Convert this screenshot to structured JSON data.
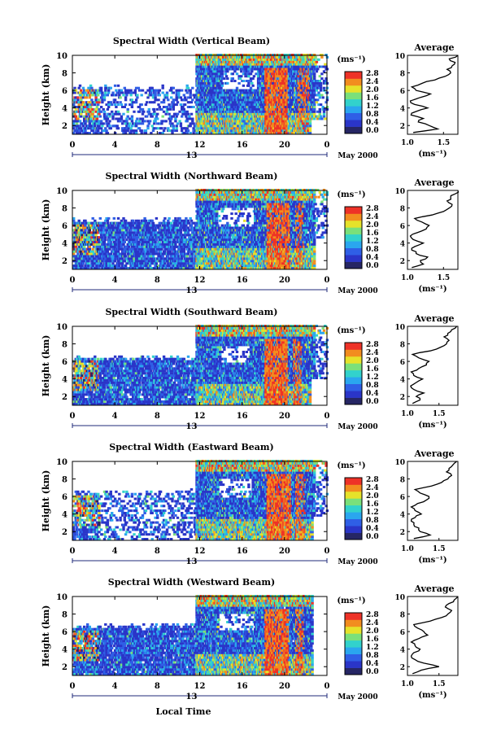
{
  "figure": {
    "xlabel": "Local Time",
    "date_label": "May 2000",
    "day_label": "13",
    "avg_title": "Average",
    "avg_xlabel": "(ms⁻¹)",
    "colorbar_unit": "(ms⁻¹)",
    "ylabel": "Height (km)"
  },
  "chart_data": [
    {
      "type": "heatmap",
      "title": "Spectral Width (Vertical Beam)",
      "xlabel": "Local Time",
      "ylabel": "Height (km)",
      "xticks": [
        "0",
        "4",
        "8",
        "12",
        "16",
        "20",
        "0"
      ],
      "yticks": [
        "2",
        "4",
        "6",
        "8",
        "10"
      ],
      "xlim": [
        0,
        24
      ],
      "ylim": [
        1,
        10
      ],
      "colorbar": {
        "label": "(ms⁻¹)",
        "ticks": [
          "0.0",
          "0.4",
          "0.8",
          "1.2",
          "1.6",
          "2.0",
          "2.4",
          "2.8"
        ],
        "range": [
          0,
          2.8
        ]
      },
      "colormap": [
        "#262664",
        "#2a35c8",
        "#2f5fe6",
        "#2aa6ef",
        "#32d2cc",
        "#7ae07a",
        "#e6e22a",
        "#f28d1f",
        "#ee3227"
      ],
      "average": {
        "xlim": [
          1.0,
          1.7
        ],
        "xticks": [
          "1.0",
          "1.5"
        ],
        "yticks": [
          "2",
          "4",
          "6",
          "8",
          "10"
        ],
        "heights": [
          1.2,
          1.6,
          2.0,
          2.4,
          2.8,
          3.2,
          3.6,
          4.0,
          4.4,
          4.8,
          5.2,
          5.6,
          6.0,
          6.4,
          6.8,
          7.2,
          7.6,
          8.0,
          8.4,
          8.8,
          9.2,
          9.6,
          10.0
        ],
        "values": [
          1.08,
          1.42,
          1.3,
          1.15,
          1.22,
          1.05,
          1.12,
          1.28,
          1.1,
          1.04,
          1.18,
          1.32,
          1.12,
          1.06,
          1.2,
          1.38,
          1.52,
          1.6,
          1.55,
          1.62,
          1.66,
          1.58,
          1.7
        ]
      },
      "features": {
        "low_start": 0.0,
        "low_end": 11.0,
        "low_top": 6.2,
        "sparse": true,
        "upper_start": 11.5,
        "convective": [
          [
            18.0,
            20.3,
            0.85
          ],
          [
            21.2,
            22.3,
            0.55
          ]
        ],
        "blank": [
          [
            22.4,
            24.0,
            1.0,
            2.5
          ]
        ],
        "clouds": [
          [
            14.0,
            17.3,
            6.0,
            8.2
          ]
        ],
        "dense_end": 22.8
      }
    },
    {
      "type": "heatmap",
      "title": "Spectral Width (Northward Beam)",
      "xlabel": "Local Time",
      "ylabel": "Height (km)",
      "xticks": [
        "0",
        "4",
        "8",
        "12",
        "16",
        "20",
        "0"
      ],
      "yticks": [
        "2",
        "4",
        "6",
        "8",
        "10"
      ],
      "xlim": [
        0,
        24
      ],
      "ylim": [
        1,
        10
      ],
      "colorbar": {
        "label": "(ms⁻¹)",
        "ticks": [
          "0.0",
          "0.4",
          "0.8",
          "1.2",
          "1.6",
          "2.0",
          "2.4",
          "2.8"
        ],
        "range": [
          0,
          2.8
        ]
      },
      "colormap": [
        "#262664",
        "#2a35c8",
        "#2f5fe6",
        "#2aa6ef",
        "#32d2cc",
        "#7ae07a",
        "#e6e22a",
        "#f28d1f",
        "#ee3227"
      ],
      "average": {
        "xlim": [
          1.0,
          1.7
        ],
        "xticks": [
          "1.0",
          "1.5"
        ],
        "yticks": [
          "2",
          "4",
          "6",
          "8",
          "10"
        ],
        "heights": [
          1.2,
          1.6,
          2.0,
          2.4,
          2.8,
          3.2,
          3.6,
          4.0,
          4.4,
          4.8,
          5.2,
          5.6,
          6.0,
          6.4,
          6.8,
          7.2,
          7.6,
          8.0,
          8.4,
          8.8,
          9.2,
          9.6,
          10.0
        ],
        "values": [
          1.06,
          1.22,
          1.18,
          1.28,
          1.12,
          1.06,
          1.1,
          1.22,
          1.08,
          1.04,
          1.14,
          1.26,
          1.3,
          1.2,
          1.1,
          1.34,
          1.5,
          1.58,
          1.62,
          1.55,
          1.6,
          1.66,
          1.7
        ]
      },
      "features": {
        "low_start": 0.0,
        "low_end": 11.5,
        "low_top": 6.5,
        "sparse": false,
        "upper_start": 11.5,
        "convective": [
          [
            18.2,
            20.5,
            0.8
          ],
          [
            21.0,
            21.8,
            0.5
          ]
        ],
        "blank": [
          [
            22.8,
            24.0,
            1.0,
            4.5
          ]
        ],
        "clouds": [
          [
            13.5,
            17.0,
            5.8,
            7.8
          ]
        ],
        "dense_end": 22.8
      }
    },
    {
      "type": "heatmap",
      "title": "Spectral Width (Southward Beam)",
      "xlabel": "Local Time",
      "ylabel": "Height (km)",
      "xticks": [
        "0",
        "4",
        "8",
        "12",
        "16",
        "20",
        "0"
      ],
      "yticks": [
        "2",
        "4",
        "6",
        "8",
        "10"
      ],
      "xlim": [
        0,
        24
      ],
      "ylim": [
        1,
        10
      ],
      "colorbar": {
        "label": "(ms⁻¹)",
        "ticks": [
          "0.0",
          "0.4",
          "0.8",
          "1.2",
          "1.6",
          "2.0",
          "2.4",
          "2.8"
        ],
        "range": [
          0,
          2.8
        ]
      },
      "colormap": [
        "#262664",
        "#2a35c8",
        "#2f5fe6",
        "#2aa6ef",
        "#32d2cc",
        "#7ae07a",
        "#e6e22a",
        "#f28d1f",
        "#ee3227"
      ],
      "average": {
        "xlim": [
          1.0,
          1.8
        ],
        "xticks": [
          "1.0",
          "1.5"
        ],
        "yticks": [
          "2",
          "4",
          "6",
          "8",
          "10"
        ],
        "heights": [
          1.2,
          1.6,
          2.0,
          2.4,
          2.8,
          3.2,
          3.6,
          4.0,
          4.4,
          4.8,
          5.2,
          5.6,
          6.0,
          6.4,
          6.8,
          7.2,
          7.6,
          8.0,
          8.4,
          8.8,
          9.2,
          9.6,
          10.0
        ],
        "values": [
          1.08,
          1.2,
          1.14,
          1.26,
          1.1,
          1.05,
          1.14,
          1.24,
          1.1,
          1.06,
          1.18,
          1.3,
          1.34,
          1.18,
          1.08,
          1.36,
          1.52,
          1.62,
          1.66,
          1.58,
          1.64,
          1.7,
          1.78
        ]
      },
      "features": {
        "low_start": 0.0,
        "low_end": 12.0,
        "low_top": 6.2,
        "sparse": false,
        "upper_start": 11.5,
        "convective": [
          [
            18.0,
            20.3,
            0.85
          ],
          [
            20.8,
            21.6,
            0.55
          ]
        ],
        "blank": [
          [
            22.4,
            24.0,
            1.0,
            3.8
          ]
        ],
        "clouds": [
          [
            13.8,
            16.6,
            5.6,
            7.6
          ]
        ],
        "dense_end": 22.8
      }
    },
    {
      "type": "heatmap",
      "title": "Spectral Width (Eastward Beam)",
      "xlabel": "Local Time",
      "ylabel": "Height (km)",
      "xticks": [
        "0",
        "4",
        "8",
        "12",
        "16",
        "20",
        "0"
      ],
      "yticks": [
        "2",
        "4",
        "6",
        "8",
        "10"
      ],
      "xlim": [
        0,
        24
      ],
      "ylim": [
        1,
        10
      ],
      "colorbar": {
        "label": "(ms⁻¹)",
        "ticks": [
          "0.0",
          "0.4",
          "0.8",
          "1.2",
          "1.6",
          "2.0",
          "2.4",
          "2.8"
        ],
        "range": [
          0,
          2.8
        ]
      },
      "colormap": [
        "#262664",
        "#2a35c8",
        "#2f5fe6",
        "#2aa6ef",
        "#32d2cc",
        "#7ae07a",
        "#e6e22a",
        "#f28d1f",
        "#ee3227"
      ],
      "average": {
        "xlim": [
          1.0,
          1.8
        ],
        "xticks": [
          "1.0",
          "1.5"
        ],
        "yticks": [
          "2",
          "4",
          "6",
          "8",
          "10"
        ],
        "heights": [
          1.2,
          1.6,
          2.0,
          2.4,
          2.8,
          3.2,
          3.6,
          4.0,
          4.4,
          4.8,
          5.2,
          5.6,
          6.0,
          6.4,
          6.8,
          7.2,
          7.6,
          8.0,
          8.4,
          8.8,
          9.2,
          9.6,
          10.0
        ],
        "values": [
          1.1,
          1.36,
          1.2,
          1.18,
          1.1,
          1.06,
          1.12,
          1.22,
          1.12,
          1.06,
          1.16,
          1.3,
          1.34,
          1.2,
          1.12,
          1.38,
          1.54,
          1.64,
          1.7,
          1.62,
          1.66,
          1.72,
          1.78
        ]
      },
      "features": {
        "low_start": 0.0,
        "low_end": 11.5,
        "low_top": 6.4,
        "sparse": true,
        "upper_start": 11.5,
        "convective": [
          [
            18.2,
            20.6,
            0.85
          ],
          [
            21.0,
            21.9,
            0.5
          ]
        ],
        "blank": [
          [
            22.6,
            24.0,
            1.0,
            3.6
          ]
        ],
        "clouds": [
          [
            13.6,
            16.8,
            5.8,
            7.8
          ]
        ],
        "dense_end": 22.8
      }
    },
    {
      "type": "heatmap",
      "title": "Spectral Width (Westward Beam)",
      "xlabel": "Local Time",
      "ylabel": "Height (km)",
      "xticks": [
        "0",
        "4",
        "8",
        "12",
        "16",
        "20",
        "0"
      ],
      "yticks": [
        "2",
        "4",
        "6",
        "8",
        "10"
      ],
      "xlim": [
        0,
        24
      ],
      "ylim": [
        1,
        10
      ],
      "colorbar": {
        "label": "(ms⁻¹)",
        "ticks": [
          "0.0",
          "0.4",
          "0.8",
          "1.2",
          "1.6",
          "2.0",
          "2.4",
          "2.8"
        ],
        "range": [
          0,
          2.8
        ]
      },
      "colormap": [
        "#262664",
        "#2a35c8",
        "#2f5fe6",
        "#2aa6ef",
        "#32d2cc",
        "#7ae07a",
        "#e6e22a",
        "#f28d1f",
        "#ee3227"
      ],
      "average": {
        "xlim": [
          1.0,
          1.8
        ],
        "xticks": [
          "1.0",
          "1.5"
        ],
        "yticks": [
          "2",
          "4",
          "6",
          "8",
          "10"
        ],
        "heights": [
          1.2,
          1.6,
          2.0,
          2.4,
          2.8,
          3.2,
          3.6,
          4.0,
          4.4,
          4.8,
          5.2,
          5.6,
          6.0,
          6.4,
          6.8,
          7.2,
          7.6,
          8.0,
          8.4,
          8.8,
          9.2,
          9.6,
          10.0
        ],
        "values": [
          1.08,
          1.22,
          1.5,
          1.26,
          1.12,
          1.06,
          1.1,
          1.2,
          1.12,
          1.06,
          1.18,
          1.32,
          1.26,
          1.16,
          1.1,
          1.36,
          1.54,
          1.64,
          1.7,
          1.6,
          1.66,
          1.74,
          1.8
        ]
      },
      "features": {
        "low_start": 0.0,
        "low_end": 11.5,
        "low_top": 6.5,
        "sparse": false,
        "upper_start": 11.5,
        "convective": [
          [
            18.0,
            20.4,
            0.85
          ],
          [
            21.0,
            21.8,
            0.5
          ]
        ],
        "blank": [
          [
            22.6,
            24.0,
            1.0,
            10.0
          ]
        ],
        "clouds": [
          [
            13.6,
            17.0,
            6.0,
            8.0
          ]
        ],
        "dense_end": 22.6
      }
    }
  ]
}
